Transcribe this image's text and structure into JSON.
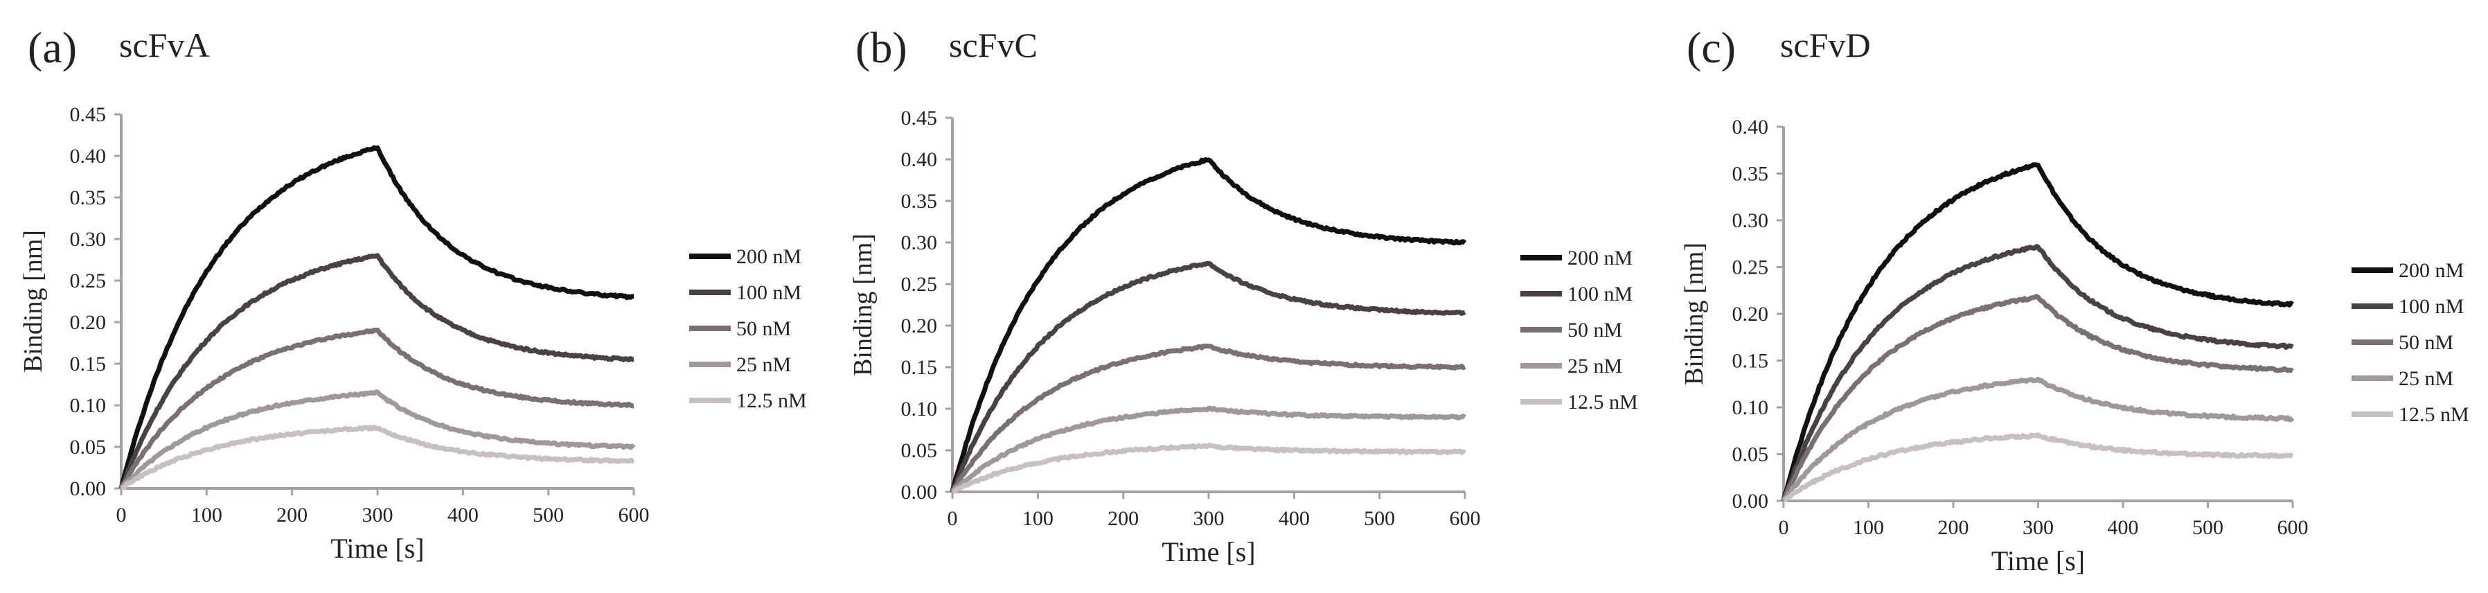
{
  "chart_data": [
    {
      "type": "line",
      "panel_label": "(a)",
      "title": "scFvA",
      "xlabel": "Time [s]",
      "ylabel": "Binding [nm]",
      "xlim": [
        0,
        600
      ],
      "ylim": [
        0,
        0.45
      ],
      "x_ticks": [
        0,
        100,
        200,
        300,
        400,
        500,
        600
      ],
      "y_ticks": [
        0.0,
        0.05,
        0.1,
        0.15,
        0.2,
        0.25,
        0.3,
        0.35,
        0.4,
        0.45
      ],
      "model": "association 0–300 s, dissociation 300–600 s",
      "series": [
        {
          "name": "200 nM",
          "color": "#111111",
          "assoc_end": 0.41,
          "diss_end": 0.23
        },
        {
          "name": "100 nM",
          "color": "#4a4242",
          "assoc_end": 0.28,
          "diss_end": 0.155
        },
        {
          "name": "50 nM",
          "color": "#7a7070",
          "assoc_end": 0.19,
          "diss_end": 0.1
        },
        {
          "name": "25 nM",
          "color": "#a09898",
          "assoc_end": 0.115,
          "diss_end": 0.05
        },
        {
          "name": "12.5 nM",
          "color": "#c7c0bf",
          "assoc_end": 0.073,
          "diss_end": 0.033
        }
      ]
    },
    {
      "type": "line",
      "panel_label": "(b)",
      "title": "scFvC",
      "xlabel": "Time [s]",
      "ylabel": "Binding [nm]",
      "xlim": [
        0,
        600
      ],
      "ylim": [
        0,
        0.45
      ],
      "x_ticks": [
        0,
        100,
        200,
        300,
        400,
        500,
        600
      ],
      "y_ticks": [
        0.0,
        0.05,
        0.1,
        0.15,
        0.2,
        0.25,
        0.3,
        0.35,
        0.4,
        0.45
      ],
      "model": "association 0–300 s, dissociation 300–600 s",
      "series": [
        {
          "name": "200 nM",
          "color": "#111111",
          "assoc_end": 0.4,
          "diss_end": 0.3
        },
        {
          "name": "100 nM",
          "color": "#4a4242",
          "assoc_end": 0.275,
          "diss_end": 0.215
        },
        {
          "name": "50 nM",
          "color": "#7a7070",
          "assoc_end": 0.175,
          "diss_end": 0.15
        },
        {
          "name": "25 nM",
          "color": "#a09898",
          "assoc_end": 0.1,
          "diss_end": 0.09
        },
        {
          "name": "12.5 nM",
          "color": "#c7c0bf",
          "assoc_end": 0.055,
          "diss_end": 0.048
        }
      ]
    },
    {
      "type": "line",
      "panel_label": "(c)",
      "title": "scFvD",
      "xlabel": "Time [s]",
      "ylabel": "Binding [nm]",
      "xlim": [
        0,
        600
      ],
      "ylim": [
        0,
        0.4
      ],
      "x_ticks": [
        0,
        100,
        200,
        300,
        400,
        500,
        600
      ],
      "y_ticks": [
        0.0,
        0.05,
        0.1,
        0.15,
        0.2,
        0.25,
        0.3,
        0.35,
        0.4
      ],
      "model": "association 0–300 s, dissociation 300–600 s",
      "series": [
        {
          "name": "200 nM",
          "color": "#111111",
          "assoc_end": 0.36,
          "diss_end": 0.21
        },
        {
          "name": "100 nM",
          "color": "#4a4242",
          "assoc_end": 0.272,
          "diss_end": 0.165
        },
        {
          "name": "50 nM",
          "color": "#7a7070",
          "assoc_end": 0.218,
          "diss_end": 0.14
        },
        {
          "name": "25 nM",
          "color": "#a09898",
          "assoc_end": 0.13,
          "diss_end": 0.088
        },
        {
          "name": "12.5 nM",
          "color": "#c7c0bf",
          "assoc_end": 0.07,
          "diss_end": 0.048
        }
      ]
    }
  ]
}
